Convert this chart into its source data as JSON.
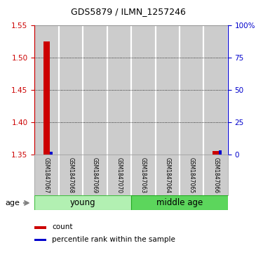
{
  "title": "GDS5879 / ILMN_1257246",
  "samples": [
    "GSM1847067",
    "GSM1847068",
    "GSM1847069",
    "GSM1847070",
    "GSM1847063",
    "GSM1847064",
    "GSM1847065",
    "GSM1847066"
  ],
  "red_bar_sample_idx": 0,
  "red_bar_value": 1.525,
  "blue_bar_sample_idx": 0,
  "blue_bar_value": 2.0,
  "red_bar2_sample_idx": 7,
  "red_bar2_value": 1.355,
  "blue_bar2_sample_idx": 7,
  "blue_bar2_value": 3.0,
  "ylim_left": [
    1.35,
    1.55
  ],
  "ylim_right": [
    0,
    100
  ],
  "yticks_left": [
    1.35,
    1.4,
    1.45,
    1.5,
    1.55
  ],
  "yticks_right": [
    0,
    25,
    50,
    75,
    100
  ],
  "ytick_labels_right": [
    "0",
    "25",
    "50",
    "75",
    "100%"
  ],
  "left_color": "#cc0000",
  "right_color": "#0000cc",
  "bar_bg_color": "#cccccc",
  "bar_border_color": "#999999",
  "young_color": "#b2f0b2",
  "middle_color": "#5cd65c",
  "grid_color": "#000000",
  "legend_red_label": "count",
  "legend_blue_label": "percentile rank within the sample",
  "age_label": "age",
  "red_bar_width": 0.25,
  "blue_bar_width": 0.12,
  "title_fontsize": 9,
  "tick_fontsize": 7.5,
  "sample_fontsize": 5.5,
  "group_fontsize": 8.5,
  "legend_fontsize": 7.5
}
